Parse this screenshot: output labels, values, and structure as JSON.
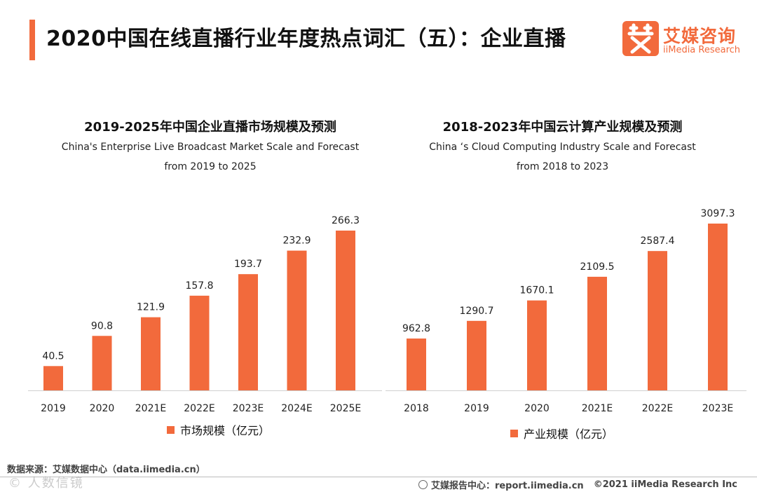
{
  "header": {
    "title": "2020中国在线直播行业年度热点词汇（五）：企业直播",
    "logo_cn": "艾媒咨询",
    "logo_en": "iiMedia Research"
  },
  "colors": {
    "accent": "#f26a3c"
  },
  "chart_data": [
    {
      "type": "bar",
      "title": "2019-2025年中国企业直播市场规模及预测",
      "subtitle_en": "China's Enterprise Live Broadcast Market Scale and Forecast",
      "subtitle_range": "from 2019 to 2025",
      "categories": [
        "2019",
        "2020",
        "2021E",
        "2022E",
        "2023E",
        "2024E",
        "2025E"
      ],
      "values": [
        40.5,
        90.8,
        121.9,
        157.8,
        193.7,
        232.9,
        266.3
      ],
      "value_labels": [
        "40.5",
        "90.8",
        "121.9",
        "157.8",
        "193.7",
        "232.9",
        "266.3"
      ],
      "legend": "市场规模（亿元）",
      "ylim": [
        0,
        300
      ]
    },
    {
      "type": "bar",
      "title": "2018-2023年中国云计算产业规模及预测",
      "subtitle_en": "China ‘s Cloud Computing Industry Scale and Forecast",
      "subtitle_range": "from 2018 to 2023",
      "categories": [
        "2018",
        "2019",
        "2020",
        "2021E",
        "2022E",
        "2023E"
      ],
      "values": [
        962.8,
        1290.7,
        1670.1,
        2109.5,
        2587.4,
        3097.3
      ],
      "value_labels": [
        "962.8",
        "1290.7",
        "1670.1",
        "2109.5",
        "2587.4",
        "3097.3"
      ],
      "legend": "产业规模（亿元）",
      "ylim": [
        0,
        3300
      ]
    }
  ],
  "footer": {
    "source": "数据来源：艾媒数据中心（data.iimedia.cn）",
    "watermark": "© 人数信镜",
    "report_link": "艾媒报告中心：report.iimedia.cn",
    "copyright": "©2021  iiMedia Research  Inc"
  }
}
